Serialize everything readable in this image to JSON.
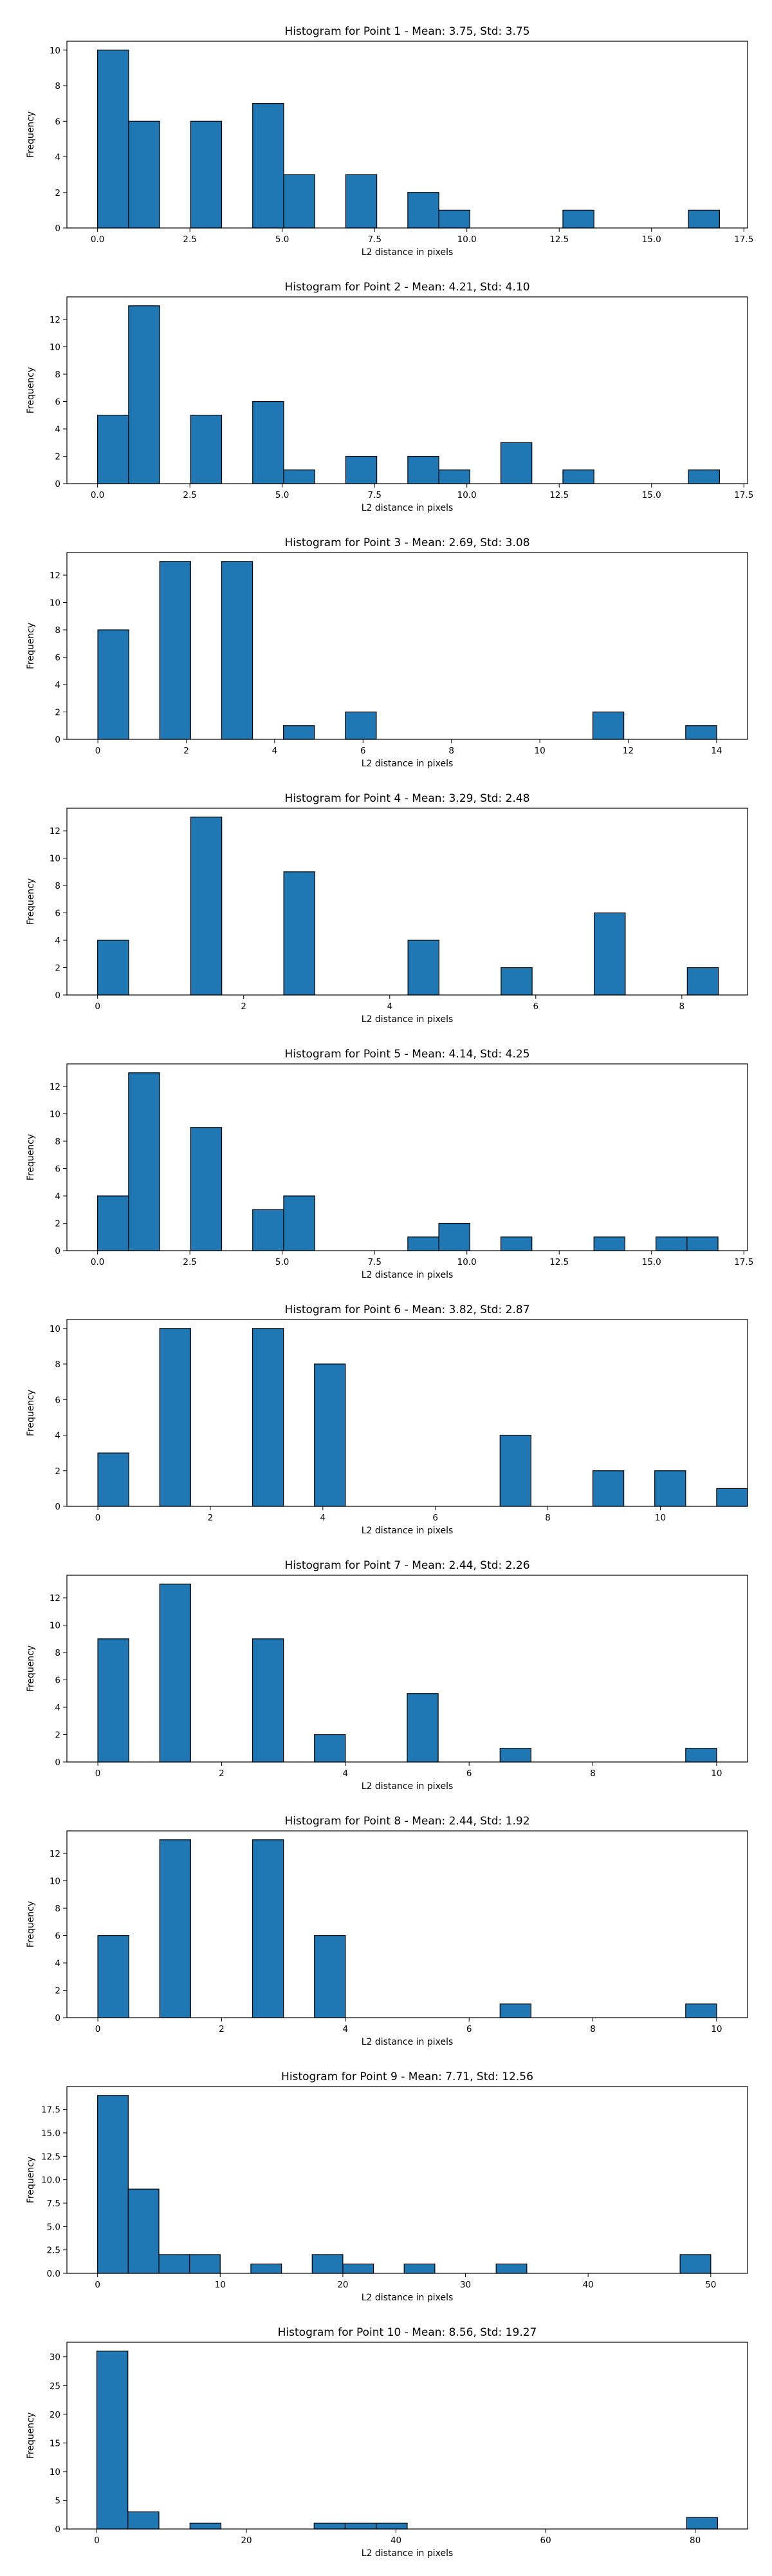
{
  "chart_data": [
    {
      "type": "bar",
      "title": "Histogram for Point 1 - Mean: 3.75, Std: 3.75",
      "xlabel": "L2 distance in pixels",
      "ylabel": "Frequency",
      "xlim": [
        -0.83,
        17.6
      ],
      "ylim": [
        0,
        10.5
      ],
      "xticks": [
        0.0,
        2.5,
        5.0,
        7.5,
        10.0,
        12.5,
        15.0,
        17.5
      ],
      "xtick_labels": [
        "0.0",
        "2.5",
        "5.0",
        "7.5",
        "10.0",
        "12.5",
        "15.0",
        "17.5"
      ],
      "yticks": [
        0,
        2,
        4,
        6,
        8,
        10
      ],
      "ytick_labels": [
        "0",
        "2",
        "4",
        "6",
        "8",
        "10"
      ],
      "bin_width": 0.84,
      "bins": [
        {
          "x": 0.0,
          "count": 10
        },
        {
          "x": 0.84,
          "count": 6
        },
        {
          "x": 2.52,
          "count": 6
        },
        {
          "x": 4.2,
          "count": 7
        },
        {
          "x": 5.04,
          "count": 3
        },
        {
          "x": 6.72,
          "count": 3
        },
        {
          "x": 8.4,
          "count": 2
        },
        {
          "x": 9.24,
          "count": 1
        },
        {
          "x": 12.6,
          "count": 1
        },
        {
          "x": 16.0,
          "count": 1
        }
      ]
    },
    {
      "type": "bar",
      "title": "Histogram for Point 2 - Mean: 4.21, Std: 4.10",
      "xlabel": "L2 distance in pixels",
      "ylabel": "Frequency",
      "xlim": [
        -0.83,
        17.6
      ],
      "ylim": [
        0,
        13.65
      ],
      "xticks": [
        0.0,
        2.5,
        5.0,
        7.5,
        10.0,
        12.5,
        15.0,
        17.5
      ],
      "xtick_labels": [
        "0.0",
        "2.5",
        "5.0",
        "7.5",
        "10.0",
        "12.5",
        "15.0",
        "17.5"
      ],
      "yticks": [
        0,
        2,
        4,
        6,
        8,
        10,
        12
      ],
      "ytick_labels": [
        "0",
        "2",
        "4",
        "6",
        "8",
        "10",
        "12"
      ],
      "bin_width": 0.84,
      "bins": [
        {
          "x": 0.0,
          "count": 5
        },
        {
          "x": 0.84,
          "count": 13
        },
        {
          "x": 2.52,
          "count": 5
        },
        {
          "x": 4.2,
          "count": 6
        },
        {
          "x": 5.04,
          "count": 1
        },
        {
          "x": 6.72,
          "count": 2
        },
        {
          "x": 8.4,
          "count": 2
        },
        {
          "x": 9.24,
          "count": 1
        },
        {
          "x": 10.92,
          "count": 3
        },
        {
          "x": 12.6,
          "count": 1
        },
        {
          "x": 16.0,
          "count": 1
        }
      ]
    },
    {
      "type": "bar",
      "title": "Histogram for Point 3 - Mean: 2.69, Std: 3.08",
      "xlabel": "L2 distance in pixels",
      "ylabel": "Frequency",
      "xlim": [
        -0.7,
        14.7
      ],
      "ylim": [
        0,
        13.65
      ],
      "xticks": [
        0,
        2,
        4,
        6,
        8,
        10,
        12,
        14
      ],
      "xtick_labels": [
        "0",
        "2",
        "4",
        "6",
        "8",
        "10",
        "12",
        "14"
      ],
      "yticks": [
        0,
        2,
        4,
        6,
        8,
        10,
        12
      ],
      "ytick_labels": [
        "0",
        "2",
        "4",
        "6",
        "8",
        "10",
        "12"
      ],
      "bin_width": 0.7,
      "bins": [
        {
          "x": 0.0,
          "count": 8
        },
        {
          "x": 1.4,
          "count": 13
        },
        {
          "x": 2.8,
          "count": 13
        },
        {
          "x": 4.2,
          "count": 1
        },
        {
          "x": 5.6,
          "count": 2
        },
        {
          "x": 11.2,
          "count": 2
        },
        {
          "x": 13.3,
          "count": 1
        }
      ]
    },
    {
      "type": "bar",
      "title": "Histogram for Point 4 - Mean: 3.29, Std: 2.48",
      "xlabel": "L2 distance in pixels",
      "ylabel": "Frequency",
      "xlim": [
        -0.42,
        8.9
      ],
      "ylim": [
        0,
        13.65
      ],
      "xticks": [
        0,
        2,
        4,
        6,
        8
      ],
      "xtick_labels": [
        "0",
        "2",
        "4",
        "6",
        "8"
      ],
      "yticks": [
        0,
        2,
        4,
        6,
        8,
        10,
        12
      ],
      "ytick_labels": [
        "0",
        "2",
        "4",
        "6",
        "8",
        "10",
        "12"
      ],
      "bin_width": 0.425,
      "bins": [
        {
          "x": 0.0,
          "count": 4
        },
        {
          "x": 1.275,
          "count": 13
        },
        {
          "x": 2.55,
          "count": 9
        },
        {
          "x": 4.25,
          "count": 4
        },
        {
          "x": 5.525,
          "count": 2
        },
        {
          "x": 6.8,
          "count": 6
        },
        {
          "x": 8.075,
          "count": 2
        }
      ]
    },
    {
      "type": "bar",
      "title": "Histogram for Point 5 - Mean: 4.14, Std: 4.25",
      "xlabel": "L2 distance in pixels",
      "ylabel": "Frequency",
      "xlim": [
        -0.83,
        17.6
      ],
      "ylim": [
        0,
        13.65
      ],
      "xticks": [
        0.0,
        2.5,
        5.0,
        7.5,
        10.0,
        12.5,
        15.0,
        17.5
      ],
      "xtick_labels": [
        "0.0",
        "2.5",
        "5.0",
        "7.5",
        "10.0",
        "12.5",
        "15.0",
        "17.5"
      ],
      "yticks": [
        0,
        2,
        4,
        6,
        8,
        10,
        12
      ],
      "ytick_labels": [
        "0",
        "2",
        "4",
        "6",
        "8",
        "10",
        "12"
      ],
      "bin_width": 0.84,
      "bins": [
        {
          "x": 0.0,
          "count": 4
        },
        {
          "x": 0.84,
          "count": 13
        },
        {
          "x": 2.52,
          "count": 9
        },
        {
          "x": 4.2,
          "count": 3
        },
        {
          "x": 5.04,
          "count": 4
        },
        {
          "x": 8.4,
          "count": 1
        },
        {
          "x": 9.24,
          "count": 2
        },
        {
          "x": 10.92,
          "count": 1
        },
        {
          "x": 13.44,
          "count": 1
        },
        {
          "x": 15.12,
          "count": 1
        },
        {
          "x": 15.96,
          "count": 1
        }
      ]
    },
    {
      "type": "bar",
      "title": "Histogram for Point 6 - Mean: 3.82, Std: 2.87",
      "xlabel": "L2 distance in pixels",
      "ylabel": "Frequency",
      "xlim": [
        -0.55,
        11.55
      ],
      "ylim": [
        0,
        10.5
      ],
      "xticks": [
        0,
        2,
        4,
        6,
        8,
        10
      ],
      "xtick_labels": [
        "0",
        "2",
        "4",
        "6",
        "8",
        "10"
      ],
      "yticks": [
        0,
        2,
        4,
        6,
        8,
        10
      ],
      "ytick_labels": [
        "0",
        "2",
        "4",
        "6",
        "8",
        "10"
      ],
      "bin_width": 0.55,
      "bins": [
        {
          "x": 0.0,
          "count": 3
        },
        {
          "x": 1.1,
          "count": 10
        },
        {
          "x": 2.75,
          "count": 10
        },
        {
          "x": 3.85,
          "count": 8
        },
        {
          "x": 7.15,
          "count": 4
        },
        {
          "x": 8.8,
          "count": 2
        },
        {
          "x": 9.9,
          "count": 2
        },
        {
          "x": 11.0,
          "count": 1
        }
      ]
    },
    {
      "type": "bar",
      "title": "Histogram for Point 7 - Mean: 2.44, Std: 2.26",
      "xlabel": "L2 distance in pixels",
      "ylabel": "Frequency",
      "xlim": [
        -0.5,
        10.5
      ],
      "ylim": [
        0,
        13.65
      ],
      "xticks": [
        0,
        2,
        4,
        6,
        8,
        10
      ],
      "xtick_labels": [
        "0",
        "2",
        "4",
        "6",
        "8",
        "10"
      ],
      "yticks": [
        0,
        2,
        4,
        6,
        8,
        10,
        12
      ],
      "ytick_labels": [
        "0",
        "2",
        "4",
        "6",
        "8",
        "10",
        "12"
      ],
      "bin_width": 0.5,
      "bins": [
        {
          "x": 0.0,
          "count": 9
        },
        {
          "x": 1.0,
          "count": 13
        },
        {
          "x": 2.5,
          "count": 9
        },
        {
          "x": 3.5,
          "count": 2
        },
        {
          "x": 5.0,
          "count": 5
        },
        {
          "x": 6.5,
          "count": 1
        },
        {
          "x": 9.5,
          "count": 1
        }
      ]
    },
    {
      "type": "bar",
      "title": "Histogram for Point 8 - Mean: 2.44, Std: 1.92",
      "xlabel": "L2 distance in pixels",
      "ylabel": "Frequency",
      "xlim": [
        -0.5,
        10.5
      ],
      "ylim": [
        0,
        13.65
      ],
      "xticks": [
        0,
        2,
        4,
        6,
        8,
        10
      ],
      "xtick_labels": [
        "0",
        "2",
        "4",
        "6",
        "8",
        "10"
      ],
      "yticks": [
        0,
        2,
        4,
        6,
        8,
        10,
        12
      ],
      "ytick_labels": [
        "0",
        "2",
        "4",
        "6",
        "8",
        "10",
        "12"
      ],
      "bin_width": 0.5,
      "bins": [
        {
          "x": 0.0,
          "count": 6
        },
        {
          "x": 1.0,
          "count": 13
        },
        {
          "x": 2.5,
          "count": 13
        },
        {
          "x": 3.5,
          "count": 6
        },
        {
          "x": 6.5,
          "count": 1
        },
        {
          "x": 9.5,
          "count": 1
        }
      ]
    },
    {
      "type": "bar",
      "title": "Histogram for Point 9 - Mean: 7.71, Std: 12.56",
      "xlabel": "L2 distance in pixels",
      "ylabel": "Frequency",
      "xlim": [
        -2.5,
        53.0
      ],
      "ylim": [
        0,
        19.95
      ],
      "xticks": [
        0,
        10,
        20,
        30,
        40,
        50
      ],
      "xtick_labels": [
        "0",
        "10",
        "20",
        "30",
        "40",
        "50"
      ],
      "yticks": [
        0,
        2.5,
        5,
        7.5,
        10,
        12.5,
        15,
        17.5
      ],
      "ytick_labels": [
        "0.0",
        "2.5",
        "5.0",
        "7.5",
        "10.0",
        "12.5",
        "15.0",
        "17.5"
      ],
      "bin_width": 2.5,
      "bins": [
        {
          "x": 0.0,
          "count": 19
        },
        {
          "x": 2.5,
          "count": 9
        },
        {
          "x": 5.0,
          "count": 2
        },
        {
          "x": 7.5,
          "count": 2
        },
        {
          "x": 12.5,
          "count": 1
        },
        {
          "x": 17.5,
          "count": 2
        },
        {
          "x": 20.0,
          "count": 1
        },
        {
          "x": 25.0,
          "count": 1
        },
        {
          "x": 32.5,
          "count": 1
        },
        {
          "x": 47.5,
          "count": 2
        }
      ]
    },
    {
      "type": "bar",
      "title": "Histogram for Point 10 - Mean: 8.56, Std: 19.27",
      "xlabel": "L2 distance in pixels",
      "ylabel": "Frequency",
      "xlim": [
        -4.0,
        87.0
      ],
      "ylim": [
        0,
        32.55
      ],
      "xticks": [
        0,
        20,
        40,
        60,
        80
      ],
      "xtick_labels": [
        "0",
        "20",
        "40",
        "60",
        "80"
      ],
      "yticks": [
        0,
        5,
        10,
        15,
        20,
        25,
        30
      ],
      "ytick_labels": [
        "0",
        "5",
        "10",
        "15",
        "20",
        "25",
        "30"
      ],
      "bin_width": 4.15,
      "bins": [
        {
          "x": 0.0,
          "count": 31
        },
        {
          "x": 4.15,
          "count": 3
        },
        {
          "x": 12.45,
          "count": 1
        },
        {
          "x": 29.05,
          "count": 1
        },
        {
          "x": 33.2,
          "count": 1
        },
        {
          "x": 37.35,
          "count": 1
        },
        {
          "x": 78.85,
          "count": 2
        }
      ]
    }
  ],
  "style": {
    "bar_fill": "#1f77b4",
    "bar_edge": "#000000",
    "axis_color": "#000000",
    "background": "#ffffff"
  }
}
